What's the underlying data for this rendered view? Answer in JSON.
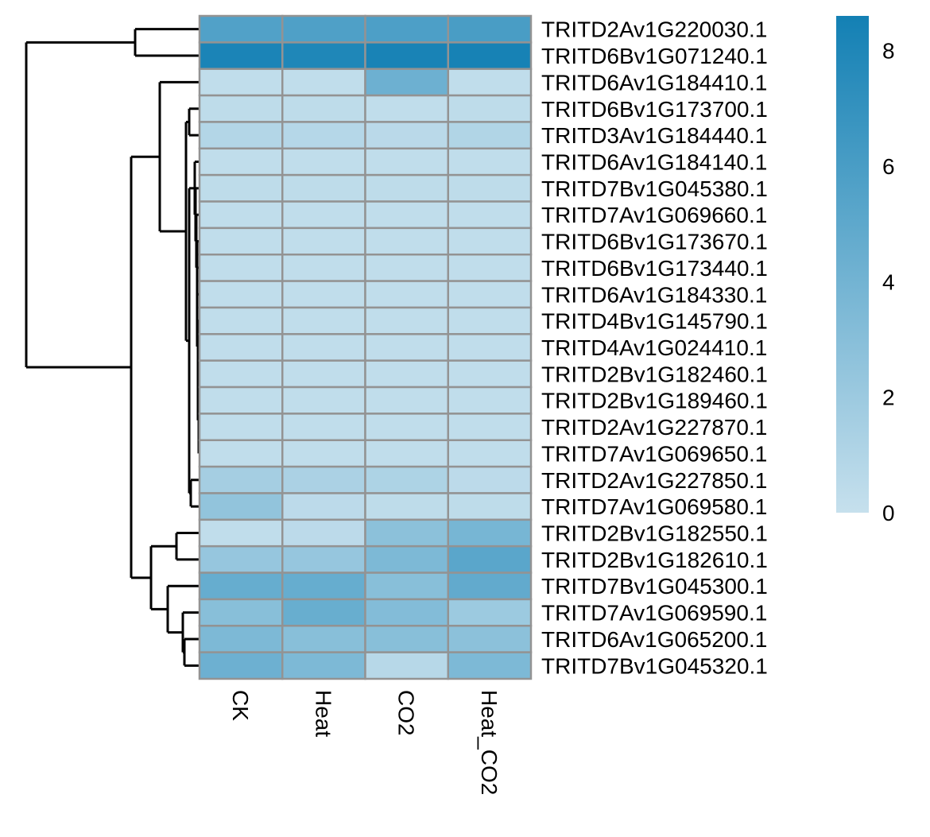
{
  "chart_data": {
    "type": "heatmap",
    "title": "",
    "xlabel": "",
    "ylabel": "",
    "columns": [
      "CK",
      "Heat",
      "CO2",
      "Heat_CO2"
    ],
    "rows": [
      "TRITD2Av1G220030.1",
      "TRITD6Bv1G071240.1",
      "TRITD6Av1G184410.1",
      "TRITD6Bv1G173700.1",
      "TRITD3Av1G184440.1",
      "TRITD6Av1G184140.1",
      "TRITD7Bv1G045380.1",
      "TRITD7Av1G069660.1",
      "TRITD6Bv1G173670.1",
      "TRITD6Bv1G173440.1",
      "TRITD6Av1G184330.1",
      "TRITD4Bv1G145790.1",
      "TRITD4Av1G024410.1",
      "TRITD2Bv1G182460.1",
      "TRITD2Bv1G189460.1",
      "TRITD2Av1G227870.1",
      "TRITD7Av1G069650.1",
      "TRITD2Av1G227850.1",
      "TRITD7Av1G069580.1",
      "TRITD2Bv1G182550.1",
      "TRITD2Bv1G182610.1",
      "TRITD7Bv1G045300.1",
      "TRITD7Av1G069590.1",
      "TRITD6Av1G065200.1",
      "TRITD7Bv1G045320.1"
    ],
    "values": [
      [
        5.6,
        5.7,
        5.8,
        6.0
      ],
      [
        8.2,
        8.0,
        8.3,
        8.4
      ],
      [
        0.3,
        0.3,
        4.3,
        0.3
      ],
      [
        0.4,
        0.4,
        0.3,
        0.4
      ],
      [
        0.9,
        0.8,
        0.6,
        1.0
      ],
      [
        0.3,
        0.3,
        0.3,
        0.3
      ],
      [
        0.4,
        0.4,
        0.4,
        0.4
      ],
      [
        0.3,
        0.3,
        0.3,
        0.3
      ],
      [
        0.3,
        0.3,
        0.3,
        0.3
      ],
      [
        0.3,
        0.3,
        0.3,
        0.3
      ],
      [
        0.3,
        0.3,
        0.3,
        0.3
      ],
      [
        0.3,
        0.3,
        0.3,
        0.3
      ],
      [
        0.3,
        0.3,
        0.3,
        0.3
      ],
      [
        0.3,
        0.3,
        0.3,
        0.3
      ],
      [
        0.3,
        0.3,
        0.3,
        0.3
      ],
      [
        0.3,
        0.3,
        0.3,
        0.3
      ],
      [
        0.3,
        0.3,
        0.3,
        0.3
      ],
      [
        1.6,
        1.3,
        1.2,
        0.5
      ],
      [
        2.5,
        0.5,
        0.4,
        0.4
      ],
      [
        0.3,
        0.5,
        2.8,
        3.8
      ],
      [
        2.3,
        2.3,
        3.5,
        5.2
      ],
      [
        4.6,
        4.6,
        3.0,
        4.8
      ],
      [
        3.0,
        4.5,
        3.2,
        2.0
      ],
      [
        3.5,
        3.0,
        3.0,
        2.8
      ],
      [
        4.3,
        3.5,
        0.7,
        3.5
      ]
    ],
    "color_scale": {
      "min": 0,
      "max": 8.6,
      "low_color": "#c6e0ed",
      "high_color": "#1380b4",
      "ticks": [
        0,
        2,
        4,
        6,
        8
      ]
    },
    "legend_placement": "right",
    "row_dendrogram": true,
    "grid": false
  }
}
